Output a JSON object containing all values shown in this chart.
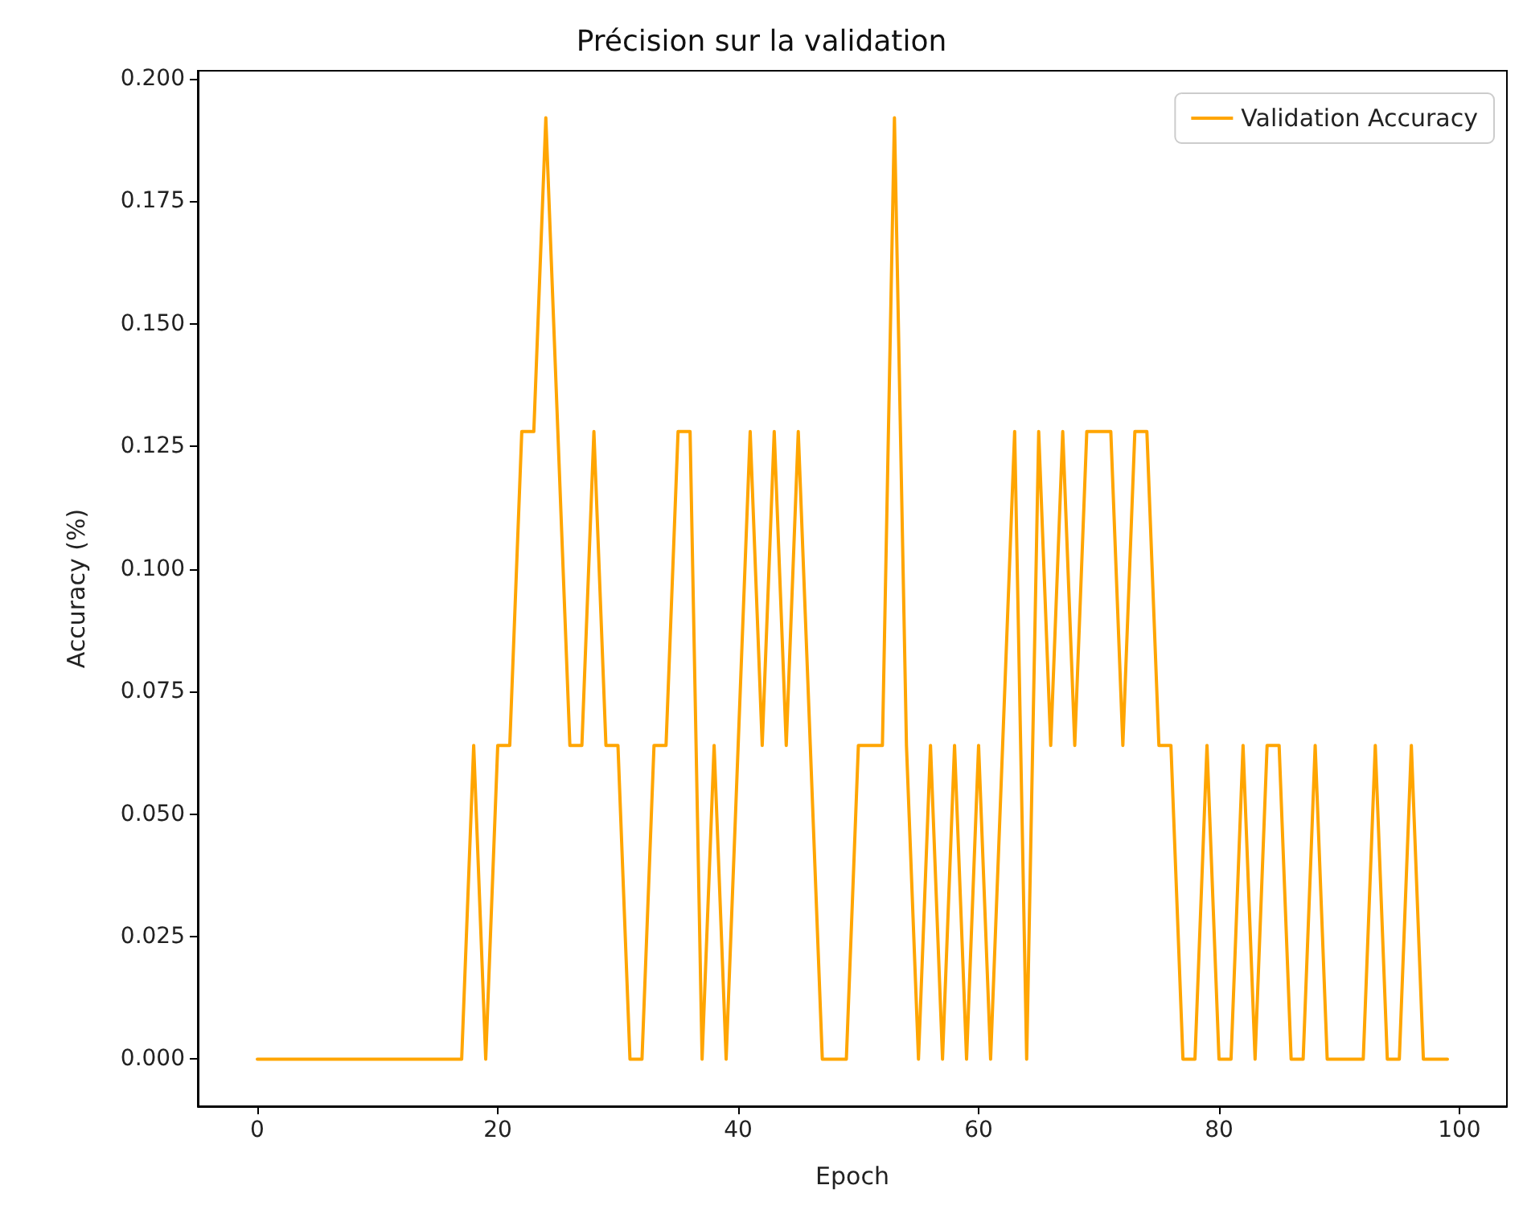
{
  "chart_data": {
    "type": "line",
    "title": "Précision sur la validation",
    "xlabel": "Epoch",
    "ylabel": "Accuracy (%)",
    "x": [
      0,
      1,
      2,
      3,
      4,
      5,
      6,
      7,
      8,
      9,
      10,
      11,
      12,
      13,
      14,
      15,
      16,
      17,
      18,
      19,
      20,
      21,
      22,
      23,
      24,
      25,
      26,
      27,
      28,
      29,
      30,
      31,
      32,
      33,
      34,
      35,
      36,
      37,
      38,
      39,
      40,
      41,
      42,
      43,
      44,
      45,
      46,
      47,
      48,
      49,
      50,
      51,
      52,
      53,
      54,
      55,
      56,
      57,
      58,
      59,
      60,
      61,
      62,
      63,
      64,
      65,
      66,
      67,
      68,
      69,
      70,
      71,
      72,
      73,
      74,
      75,
      76,
      77,
      78,
      79,
      80,
      81,
      82,
      83,
      84,
      85,
      86,
      87,
      88,
      89,
      90,
      91,
      92,
      93,
      94,
      95,
      96,
      97,
      98,
      99
    ],
    "series": [
      {
        "name": "Validation Accuracy",
        "color": "#ffa500",
        "values": [
          0,
          0,
          0,
          0,
          0,
          0,
          0,
          0,
          0,
          0,
          0,
          0,
          0,
          0,
          0,
          0,
          0,
          0,
          0.064,
          0,
          0.064,
          0.064,
          0.128,
          0.128,
          0.192,
          0.128,
          0.064,
          0.064,
          0.128,
          0.064,
          0.064,
          0,
          0,
          0.064,
          0.064,
          0.128,
          0.128,
          0,
          0.064,
          0,
          0.064,
          0.128,
          0.064,
          0.128,
          0.064,
          0.128,
          0.064,
          0,
          0,
          0,
          0.064,
          0.064,
          0.064,
          0.192,
          0.064,
          0,
          0.064,
          0,
          0.064,
          0,
          0.064,
          0,
          0.064,
          0.128,
          0,
          0.128,
          0.064,
          0.128,
          0.064,
          0.128,
          0.128,
          0.128,
          0.064,
          0.128,
          0.128,
          0.064,
          0.064,
          0,
          0,
          0.064,
          0,
          0,
          0.064,
          0,
          0.064,
          0.064,
          0,
          0,
          0.064,
          0,
          0,
          0,
          0,
          0.064,
          0,
          0,
          0.064,
          0,
          0,
          0
        ]
      }
    ],
    "xlim": [
      -4.95,
      103.95
    ],
    "xticks": [
      0,
      20,
      40,
      60,
      80,
      100
    ],
    "ylim": [
      -0.0096,
      0.2016
    ],
    "yticks": [
      {
        "value": 0,
        "label": "0.000"
      },
      {
        "value": 0.025,
        "label": "0.025"
      },
      {
        "value": 0.05,
        "label": "0.050"
      },
      {
        "value": 0.075,
        "label": "0.075"
      },
      {
        "value": 0.1,
        "label": "0.100"
      },
      {
        "value": 0.125,
        "label": "0.125"
      },
      {
        "value": 0.15,
        "label": "0.150"
      },
      {
        "value": 0.175,
        "label": "0.175"
      },
      {
        "value": 0.2,
        "label": "0.200"
      }
    ],
    "grid": false,
    "legend": "top right",
    "marker": "none",
    "line_style": "solid"
  }
}
